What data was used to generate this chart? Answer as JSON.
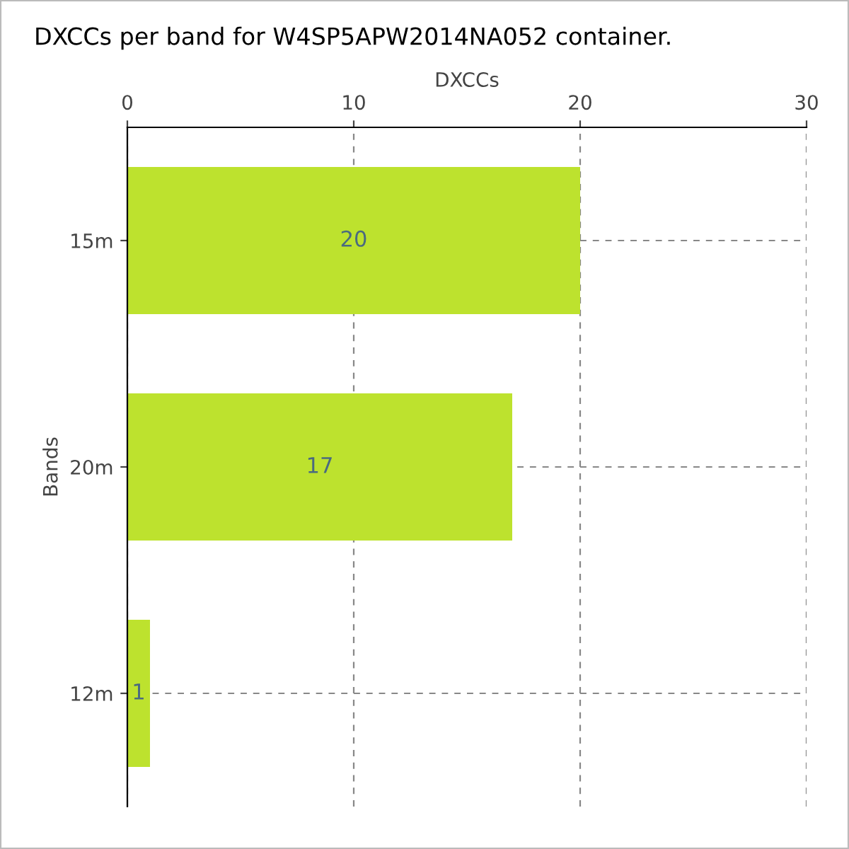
{
  "chart_data": {
    "type": "bar",
    "orientation": "horizontal",
    "title": "DXCCs per band for W4SP5APW2014NA052 container.",
    "xlabel": "DXCCs",
    "ylabel": "Bands",
    "categories": [
      "15m",
      "20m",
      "12m"
    ],
    "values": [
      20,
      17,
      1
    ],
    "color": "#bde22e",
    "xlim": [
      0,
      30
    ],
    "xticks": [
      0,
      10,
      20,
      30
    ],
    "grid": true,
    "data_labels": true
  }
}
